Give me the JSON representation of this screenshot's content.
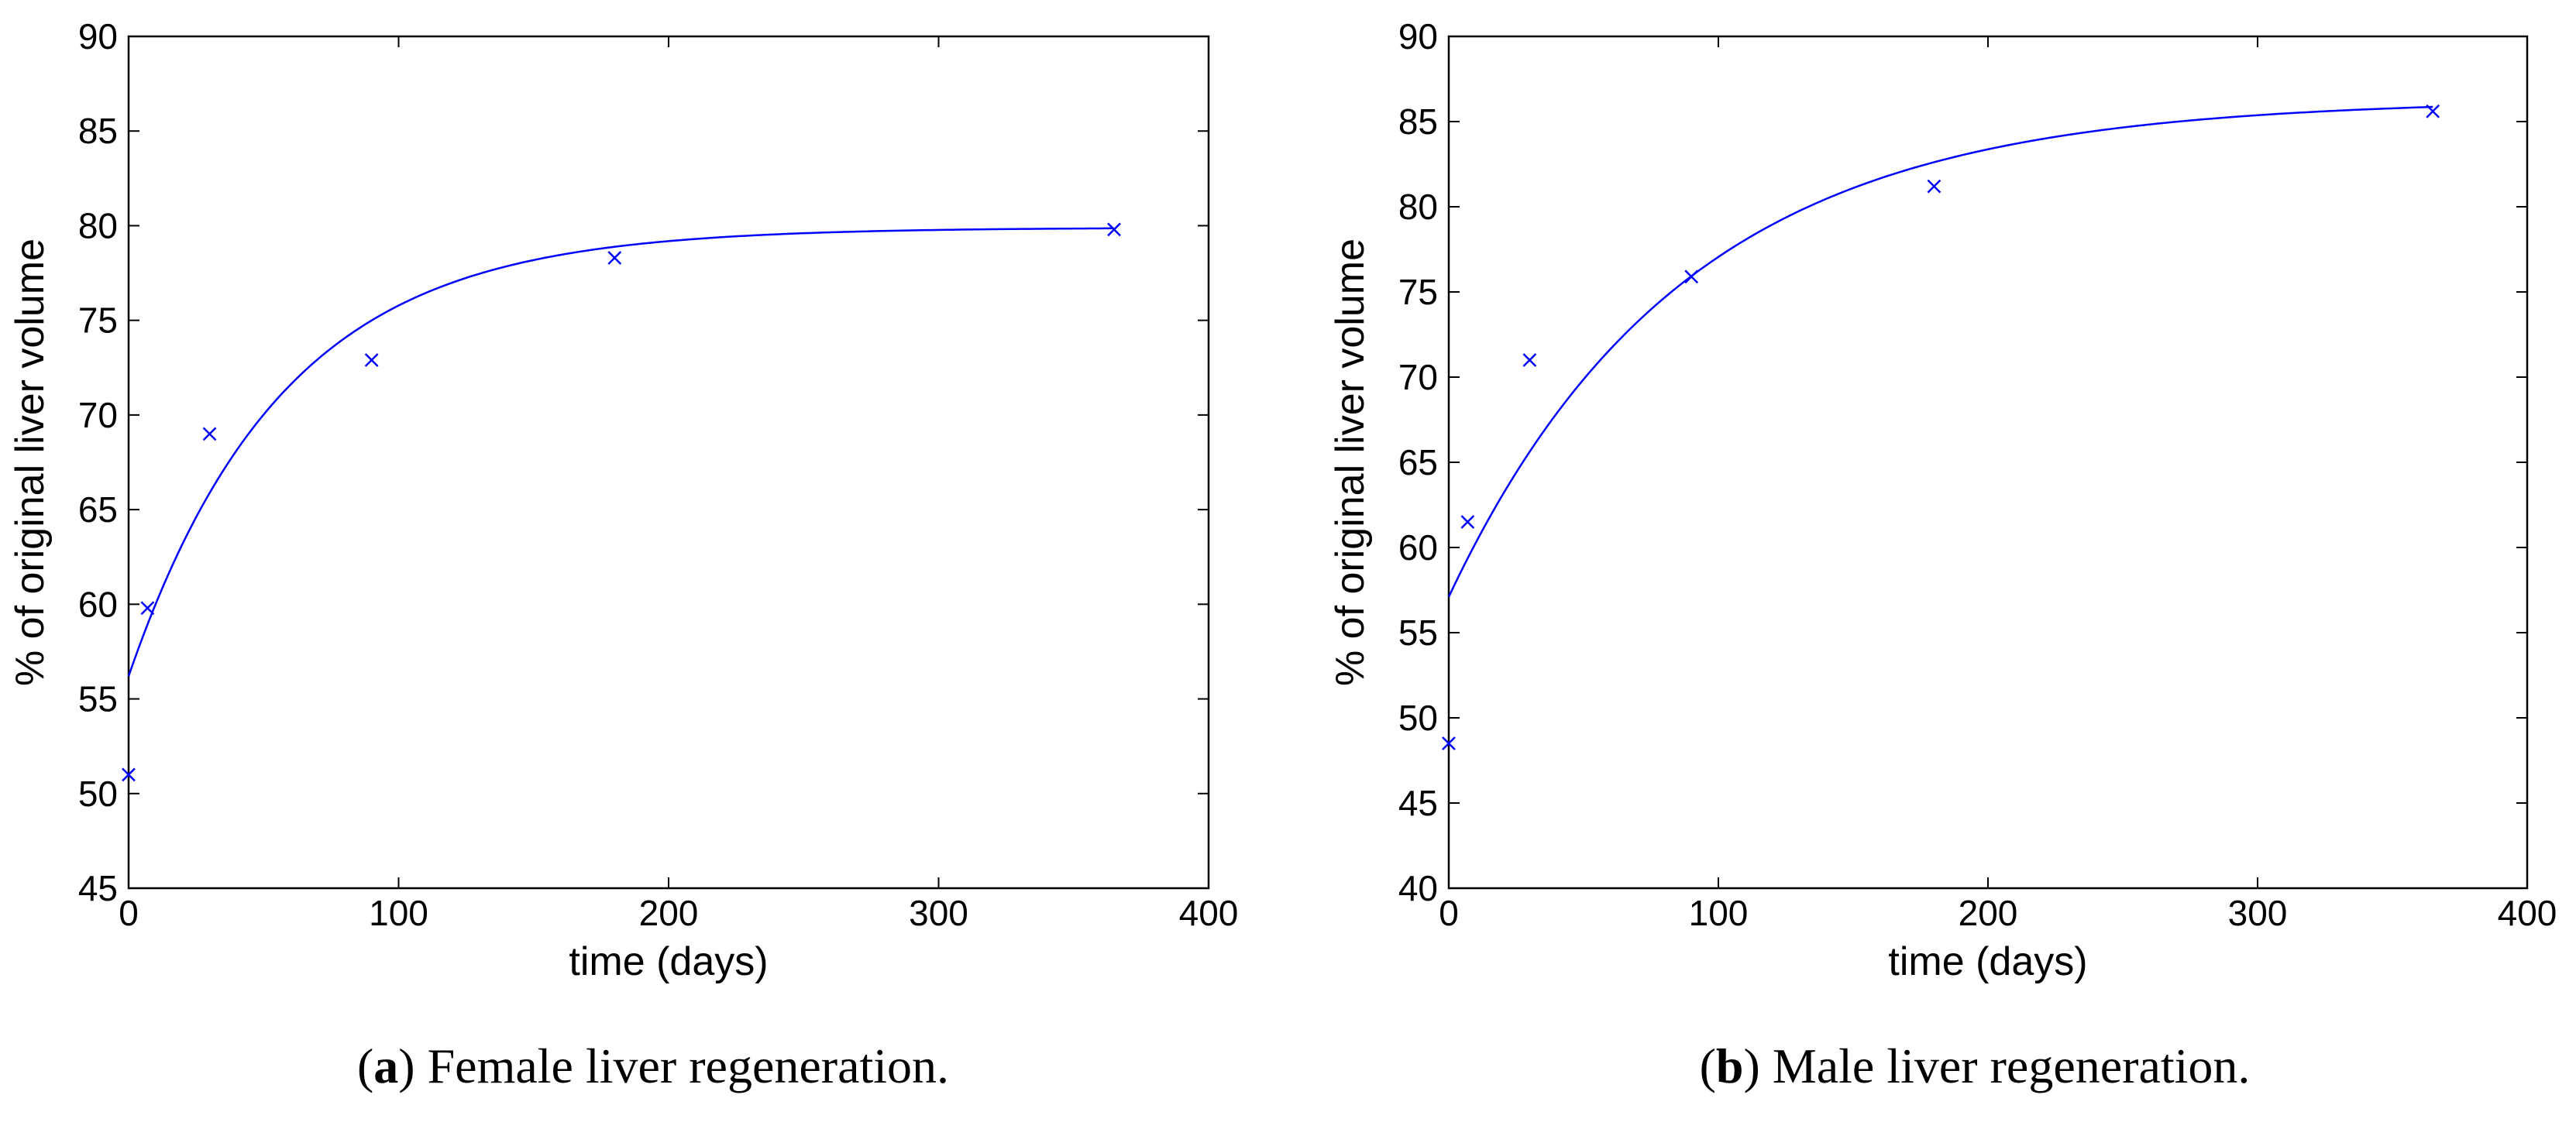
{
  "chart_data": [
    {
      "type": "scatter",
      "panel": "a",
      "caption_label": "a",
      "caption_text": ") Female liver regeneration.",
      "caption_open": "(",
      "xlabel": "time (days)",
      "ylabel": "% of original liver volume",
      "xlim": [
        0,
        400
      ],
      "ylim": [
        45,
        90
      ],
      "xticks": [
        0,
        100,
        200,
        300,
        400
      ],
      "yticks": [
        45,
        50,
        55,
        60,
        65,
        70,
        75,
        80,
        85,
        90
      ],
      "grid": false,
      "color": "#0000ff",
      "series": [
        {
          "name": "measured",
          "marker": "x",
          "x": [
            0,
            7,
            30,
            90,
            180,
            365
          ],
          "y": [
            51.0,
            59.8,
            69.0,
            72.9,
            78.3,
            79.8
          ]
        },
        {
          "name": "fit",
          "style": "line",
          "model": {
            "form": "exponential-saturation",
            "y0": 56.2,
            "y_inf": 79.9,
            "rate": 0.0175
          },
          "x_range": [
            0,
            365
          ]
        }
      ]
    },
    {
      "type": "scatter",
      "panel": "b",
      "caption_label": "b",
      "caption_text": ") Male liver regeneration.",
      "caption_open": "(",
      "xlabel": "time (days)",
      "ylabel": "% of original liver volume",
      "xlim": [
        0,
        400
      ],
      "ylim": [
        40,
        90
      ],
      "xticks": [
        0,
        100,
        200,
        300,
        400
      ],
      "yticks": [
        40,
        45,
        50,
        55,
        60,
        65,
        70,
        75,
        80,
        85,
        90
      ],
      "grid": false,
      "color": "#0000ff",
      "series": [
        {
          "name": "measured",
          "marker": "x",
          "x": [
            0,
            7,
            30,
            90,
            180,
            365
          ],
          "y": [
            48.5,
            61.5,
            71.0,
            75.9,
            81.2,
            85.6
          ]
        },
        {
          "name": "fit",
          "style": "line",
          "model": {
            "form": "exponential-saturation",
            "y0": 57.1,
            "y_inf": 86.3,
            "rate": 0.0115
          },
          "x_range": [
            0,
            365
          ]
        }
      ]
    }
  ]
}
